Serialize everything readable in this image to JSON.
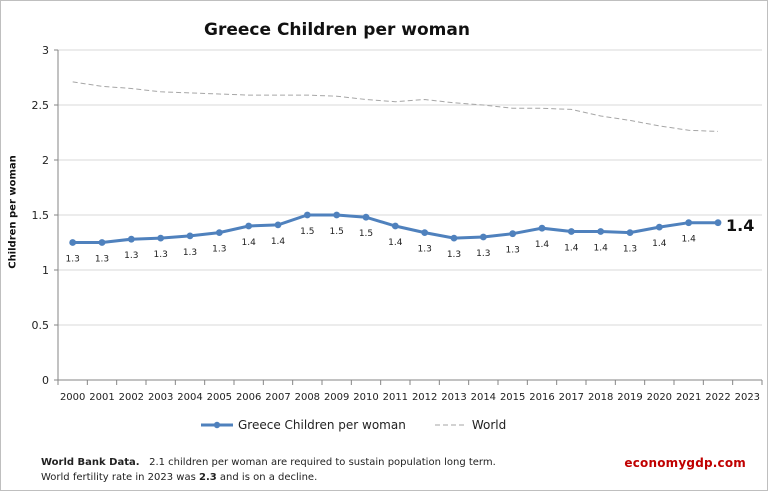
{
  "chart_data": {
    "type": "line",
    "title": "Greece Children per woman",
    "ylabel": "Children per woman",
    "xlabel": "",
    "ylim": [
      0,
      3
    ],
    "yticks": [
      "0",
      "0.5",
      "1",
      "1.5",
      "2",
      "2.5",
      "3"
    ],
    "categories": [
      "2000",
      "2001",
      "2002",
      "2003",
      "2004",
      "2005",
      "2006",
      "2007",
      "2008",
      "2009",
      "2010",
      "2011",
      "2012",
      "2013",
      "2014",
      "2015",
      "2016",
      "2017",
      "2018",
      "2019",
      "2020",
      "2021",
      "2022",
      "2023"
    ],
    "grid": true,
    "legend_position": "bottom",
    "series": [
      {
        "name": "Greece Children per woman",
        "color": "#4f81bd",
        "style": "solid-markers",
        "values": [
          1.25,
          1.25,
          1.28,
          1.29,
          1.31,
          1.34,
          1.4,
          1.41,
          1.5,
          1.5,
          1.48,
          1.4,
          1.34,
          1.29,
          1.3,
          1.33,
          1.38,
          1.35,
          1.35,
          1.34,
          1.39,
          1.43,
          1.43,
          null
        ],
        "data_labels": [
          "1.3",
          "1.3",
          "1.3",
          "1.3",
          "1.3",
          "1.3",
          "1.4",
          "1.4",
          "1.5",
          "1.5",
          "1.5",
          "1.4",
          "1.3",
          "1.3",
          "1.3",
          "1.3",
          "1.4",
          "1.4",
          "1.4",
          "1.3",
          "1.4",
          "1.4",
          "",
          ""
        ]
      },
      {
        "name": "World",
        "color": "#a6a6a6",
        "style": "dashed",
        "values": [
          2.71,
          2.67,
          2.65,
          2.62,
          2.61,
          2.6,
          2.59,
          2.59,
          2.59,
          2.58,
          2.55,
          2.53,
          2.55,
          2.52,
          2.5,
          2.47,
          2.47,
          2.46,
          2.4,
          2.36,
          2.31,
          2.27,
          2.26,
          null
        ]
      }
    ],
    "last_value_label": "1.4"
  },
  "legend": {
    "greece": "Greece Children per woman",
    "world": "World"
  },
  "note": {
    "line1_bold": "World Bank Data.",
    "line1_rest": "2.1 children per woman are required to sustain population long term.",
    "line2_pre": "World fertility rate in 2023 was",
    "line2_bold": "2.3",
    "line2_post": "and is on a decline."
  },
  "brand": {
    "part1": "economy",
    "part2": "gdp.com"
  }
}
